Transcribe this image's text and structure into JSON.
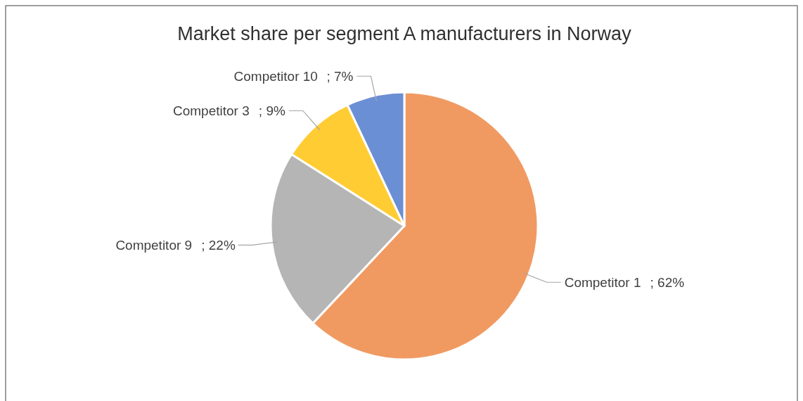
{
  "chart_data": {
    "type": "pie",
    "title": "Market share per segment A manufacturers in Norway",
    "categories": [
      "Competitor 1",
      "Competitor 9",
      "Competitor 3",
      "Competitor 10"
    ],
    "values": [
      62,
      22,
      9,
      7
    ],
    "colors": [
      "#f09a62",
      "#b5b5b5",
      "#ffcc33",
      "#6b8fd4"
    ],
    "value_labels": [
      "; 62%",
      "; 22%",
      "; 9%",
      "; 7%"
    ]
  }
}
